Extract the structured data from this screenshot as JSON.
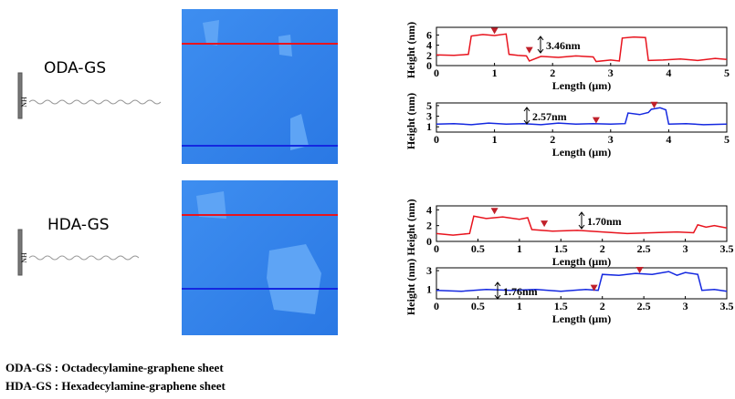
{
  "panels": [
    {
      "label": "ODA-GS",
      "group": "NH"
    },
    {
      "label": "HDA-GS",
      "group": "NH"
    }
  ],
  "legend": [
    "ODA-GS : Octadecylamine-graphene sheet",
    "HDA-GS : Hexadecylamine-graphene sheet"
  ],
  "chart_data": [
    {
      "type": "line",
      "xlabel": "Length (μm)",
      "ylabel": "Height (nm)",
      "annotation": "3.46nm",
      "xlim": [
        0,
        5
      ],
      "xticks": [
        0,
        1,
        2,
        3,
        4,
        5
      ],
      "ylim": [
        0,
        7.5
      ],
      "yticks": [
        0,
        2,
        4,
        6
      ],
      "series": [
        {
          "color": "#e8141e",
          "x": [
            0,
            0.3,
            0.55,
            0.6,
            0.8,
            1.0,
            1.2,
            1.25,
            1.4,
            1.55,
            1.6,
            1.8,
            2.1,
            2.4,
            2.7,
            2.75,
            3.0,
            3.15,
            3.2,
            3.4,
            3.6,
            3.65,
            3.9,
            4.2,
            4.5,
            4.8,
            5
          ],
          "values": [
            2.1,
            2.0,
            2.2,
            5.8,
            6.1,
            5.9,
            6.2,
            2.2,
            2.0,
            1.9,
            0.9,
            1.8,
            1.6,
            1.9,
            1.7,
            0.8,
            1.1,
            0.9,
            5.4,
            5.6,
            5.5,
            1.0,
            1.1,
            1.3,
            1.0,
            1.4,
            1.2
          ]
        }
      ],
      "markers": {
        "x": [
          1.0,
          1.6
        ],
        "y": [
          6.9,
          3.1
        ]
      }
    },
    {
      "type": "line",
      "xlabel": "Length (μm)",
      "ylabel": "Height (nm)",
      "annotation": "2.57nm",
      "xlim": [
        0,
        5
      ],
      "xticks": [
        0,
        1,
        2,
        3,
        4,
        5
      ],
      "ylim": [
        0,
        5.5
      ],
      "yticks": [
        1,
        3,
        5
      ],
      "series": [
        {
          "color": "#1428e0",
          "x": [
            0,
            0.3,
            0.6,
            0.9,
            1.2,
            1.5,
            1.8,
            2.1,
            2.4,
            2.7,
            3.0,
            3.25,
            3.3,
            3.5,
            3.65,
            3.7,
            3.85,
            3.95,
            4.0,
            4.3,
            4.6,
            5
          ],
          "values": [
            1.5,
            1.6,
            1.4,
            1.7,
            1.5,
            1.6,
            1.4,
            1.7,
            1.5,
            1.6,
            1.5,
            1.6,
            3.6,
            3.3,
            3.7,
            4.3,
            4.6,
            4.2,
            1.5,
            1.6,
            1.4,
            1.5
          ]
        }
      ],
      "markers": {
        "x": [
          2.75,
          3.75
        ],
        "y": [
          2.3,
          5.2
        ]
      }
    },
    {
      "type": "line",
      "xlabel": "Length (μm)",
      "ylabel": "Height (nm)",
      "annotation": "1.70nm",
      "xlim": [
        0,
        3.5
      ],
      "xticks": [
        0,
        0.5,
        1.0,
        1.5,
        2.0,
        2.5,
        3.0,
        3.5
      ],
      "ylim": [
        0,
        4.5
      ],
      "yticks": [
        0,
        2,
        4
      ],
      "series": [
        {
          "color": "#e8141e",
          "x": [
            0,
            0.2,
            0.4,
            0.45,
            0.6,
            0.8,
            1.0,
            1.1,
            1.15,
            1.4,
            1.7,
            2.0,
            2.3,
            2.6,
            2.9,
            3.1,
            3.15,
            3.25,
            3.35,
            3.5
          ],
          "values": [
            1.0,
            0.8,
            1.0,
            3.2,
            2.9,
            3.1,
            2.8,
            3.0,
            1.5,
            1.3,
            1.4,
            1.2,
            1.0,
            1.1,
            1.2,
            1.1,
            2.1,
            1.8,
            2.0,
            1.7
          ]
        }
      ],
      "markers": {
        "x": [
          0.7,
          1.3
        ],
        "y": [
          3.9,
          2.3
        ]
      }
    },
    {
      "type": "line",
      "xlabel": "Length (μm)",
      "ylabel": "Height (nm)",
      "annotation": "1.76nm",
      "xlim": [
        0,
        3.5
      ],
      "xticks": [
        0,
        0.5,
        1.0,
        1.5,
        2.0,
        2.5,
        3.0,
        3.5
      ],
      "ylim": [
        0,
        3.3
      ],
      "yticks": [
        1,
        3
      ],
      "series": [
        {
          "color": "#1428e0",
          "x": [
            0,
            0.3,
            0.6,
            0.9,
            1.2,
            1.5,
            1.8,
            1.95,
            2.0,
            2.2,
            2.4,
            2.6,
            2.8,
            2.9,
            3.0,
            3.15,
            3.2,
            3.35,
            3.5
          ],
          "values": [
            0.9,
            0.8,
            1.0,
            0.9,
            1.0,
            0.8,
            1.0,
            0.9,
            2.6,
            2.5,
            2.7,
            2.6,
            2.9,
            2.5,
            2.8,
            2.6,
            0.9,
            1.0,
            0.8
          ]
        }
      ],
      "markers": {
        "x": [
          1.9,
          2.45
        ],
        "y": [
          1.2,
          3.1
        ]
      }
    }
  ]
}
